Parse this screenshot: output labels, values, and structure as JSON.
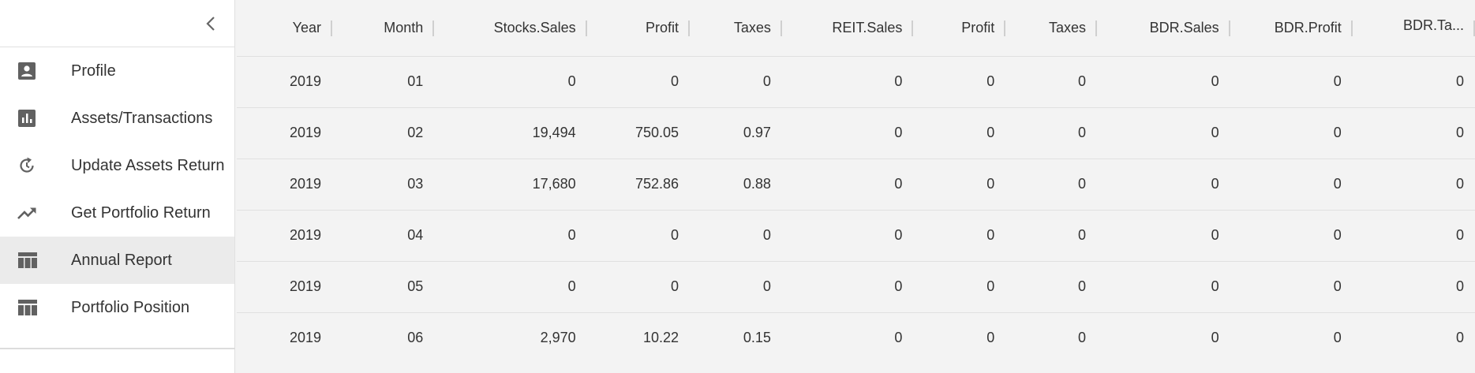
{
  "nav": {
    "items": [
      {
        "label": "Profile",
        "icon": "account-box-icon"
      },
      {
        "label": "Assets/Transactions",
        "icon": "bar-chart-icon"
      },
      {
        "label": "Update Assets Return",
        "icon": "refresh-icon"
      },
      {
        "label": "Get Portfolio Return",
        "icon": "trending-up-icon"
      },
      {
        "label": "Annual Report",
        "icon": "table-icon",
        "active": true
      },
      {
        "label": "Portfolio Position",
        "icon": "table-icon"
      }
    ]
  },
  "table": {
    "columns": [
      "Year",
      "Month",
      "Stocks.Sales",
      "Profit",
      "Taxes",
      "REIT.Sales",
      "Profit",
      "Taxes",
      "BDR.Sales",
      "BDR.Profit",
      "BDR.Ta..."
    ],
    "rows": [
      [
        "2019",
        "01",
        "0",
        "0",
        "0",
        "0",
        "0",
        "0",
        "0",
        "0",
        "0"
      ],
      [
        "2019",
        "02",
        "19,494",
        "750.05",
        "0.97",
        "0",
        "0",
        "0",
        "0",
        "0",
        "0"
      ],
      [
        "2019",
        "03",
        "17,680",
        "752.86",
        "0.88",
        "0",
        "0",
        "0",
        "0",
        "0",
        "0"
      ],
      [
        "2019",
        "04",
        "0",
        "0",
        "0",
        "0",
        "0",
        "0",
        "0",
        "0",
        "0"
      ],
      [
        "2019",
        "05",
        "0",
        "0",
        "0",
        "0",
        "0",
        "0",
        "0",
        "0",
        "0"
      ],
      [
        "2019",
        "06",
        "2,970",
        "10.22",
        "0.15",
        "0",
        "0",
        "0",
        "0",
        "0",
        "0"
      ]
    ]
  },
  "colors": {
    "icon": "#616161",
    "active_bg": "#ebebeb",
    "grid_bg": "#f3f3f3"
  }
}
